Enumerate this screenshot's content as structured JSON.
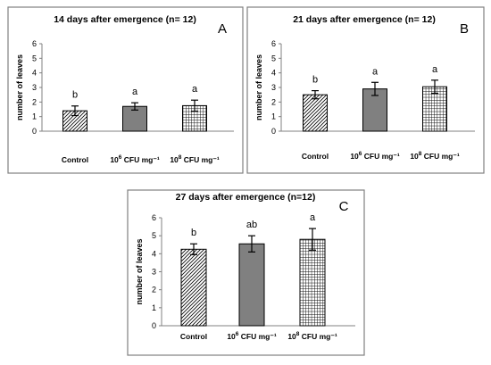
{
  "chart_data": [
    {
      "type": "bar",
      "panel_label": "A",
      "title": "14 days after emergence (n= 12)",
      "ylabel": "number of leaves",
      "categories": [
        {
          "base": "Control",
          "exp": "",
          "unit": ""
        },
        {
          "base": "10",
          "exp": "6",
          "unit": " CFU mg⁻¹"
        },
        {
          "base": "10",
          "exp": "8",
          "unit": " CFU mg⁻¹"
        }
      ],
      "yticks": [
        "0",
        "1",
        "2",
        "3",
        "4",
        "5",
        "6"
      ],
      "ylim": [
        0,
        6
      ],
      "grid": false,
      "values": [
        1.4,
        1.7,
        1.75
      ],
      "errors": [
        0.33,
        0.25,
        0.38
      ],
      "significance": [
        "b",
        "a",
        "a"
      ],
      "fills": [
        "diagonal-hatch",
        "solid-gray",
        "grid-hatch"
      ],
      "colors": {
        "bar_fill": "#808080",
        "outline": "#000000"
      }
    },
    {
      "type": "bar",
      "panel_label": "B",
      "title": "21 days after emergence (n= 12)",
      "ylabel": "number of leaves",
      "categories": [
        {
          "base": "Control",
          "exp": "",
          "unit": ""
        },
        {
          "base": "10",
          "exp": "6",
          "unit": " CFU mg⁻¹"
        },
        {
          "base": "10",
          "exp": "8",
          "unit": " CFU mg⁻¹"
        }
      ],
      "yticks": [
        "0",
        "1",
        "2",
        "3",
        "4",
        "5",
        "6"
      ],
      "ylim": [
        0,
        6
      ],
      "grid": false,
      "values": [
        2.5,
        2.9,
        3.05
      ],
      "errors": [
        0.28,
        0.45,
        0.45
      ],
      "significance": [
        "b",
        "a",
        "a"
      ],
      "fills": [
        "diagonal-hatch",
        "solid-gray",
        "grid-hatch"
      ],
      "colors": {
        "bar_fill": "#808080",
        "outline": "#000000"
      }
    },
    {
      "type": "bar",
      "panel_label": "C",
      "title": "27 days after emergence (n=12)",
      "ylabel": "number of leaves",
      "categories": [
        {
          "base": "Control",
          "exp": "",
          "unit": ""
        },
        {
          "base": "10",
          "exp": "6",
          "unit": " CFU mg⁻¹"
        },
        {
          "base": "10",
          "exp": "8",
          "unit": " CFU mg⁻¹"
        }
      ],
      "yticks": [
        "0",
        "1",
        "2",
        "3",
        "4",
        "5",
        "6"
      ],
      "ylim": [
        0,
        6
      ],
      "grid": false,
      "values": [
        4.25,
        4.55,
        4.8
      ],
      "errors": [
        0.3,
        0.45,
        0.6
      ],
      "significance": [
        "b",
        "ab",
        "a"
      ],
      "fills": [
        "diagonal-hatch",
        "solid-gray",
        "grid-hatch"
      ],
      "colors": {
        "bar_fill": "#808080",
        "outline": "#000000"
      }
    }
  ]
}
